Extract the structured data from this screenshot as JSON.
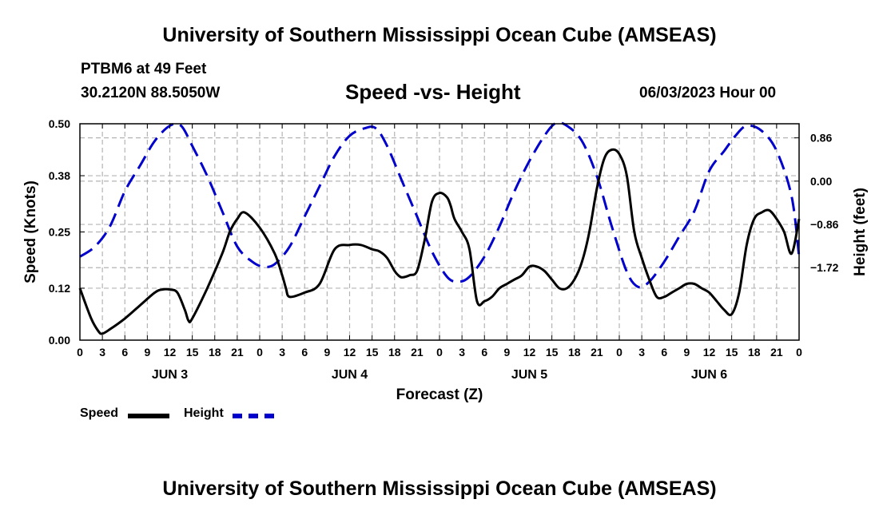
{
  "header": {
    "title": "University of Southern Mississippi Ocean Cube (AMSEAS)",
    "station": "PTBM6 at 49 Feet",
    "coordinates": "30.2120N  88.5050W",
    "forecast_time": "06/03/2023 Hour 00"
  },
  "footer": {
    "title": "University of Southern Mississippi Ocean Cube (AMSEAS)"
  },
  "colors": {
    "speed": "#000000",
    "height": "#0000cc",
    "grid": "#b4b4b4"
  },
  "chart_data": {
    "type": "line",
    "title": "Speed -vs- Height",
    "xlabel": "Forecast (Z)",
    "ylabel": "Speed (Knots)",
    "y2label": "Height (feet)",
    "xlim": [
      0,
      96
    ],
    "ylim": [
      0,
      0.5
    ],
    "y2lim": [
      -3.16,
      1.14
    ],
    "x_tick_values": [
      0,
      3,
      6,
      9,
      12,
      15,
      18,
      21,
      24,
      27,
      30,
      33,
      36,
      39,
      42,
      45,
      48,
      51,
      54,
      57,
      60,
      63,
      66,
      69,
      72,
      75,
      78,
      81,
      84,
      87,
      90,
      93,
      96
    ],
    "x_tick_labels": [
      "0",
      "3",
      "6",
      "9",
      "12",
      "15",
      "18",
      "21",
      "0",
      "3",
      "6",
      "9",
      "12",
      "15",
      "18",
      "21",
      "0",
      "3",
      "6",
      "9",
      "12",
      "15",
      "18",
      "21",
      "0",
      "3",
      "6",
      "9",
      "12",
      "15",
      "18",
      "21",
      "0"
    ],
    "day_labels": [
      {
        "label": "JUN 3",
        "at_hour": 12
      },
      {
        "label": "JUN 4",
        "at_hour": 36
      },
      {
        "label": "JUN 5",
        "at_hour": 60
      },
      {
        "label": "JUN 6",
        "at_hour": 84
      }
    ],
    "y_ticks": [
      0.0,
      0.12,
      0.25,
      0.38,
      0.5
    ],
    "y_tick_labels": [
      "0.00",
      "0.12",
      "0.25",
      "0.38",
      "0.50"
    ],
    "y2_ticks": [
      0.86,
      0.0,
      -0.86,
      -1.72
    ],
    "y2_tick_labels": [
      "0.86",
      "0.00",
      "−0.86",
      "−1.72"
    ],
    "grid": true,
    "legend": {
      "position": "bottom-left",
      "entries": [
        {
          "name": "Speed",
          "style": "solid"
        },
        {
          "name": "Height",
          "style": "dashed"
        }
      ]
    },
    "series": [
      {
        "name": "Speed",
        "axis": "left",
        "style": "solid",
        "x": [
          0,
          1.5,
          2.5,
          3,
          4,
          6,
          8,
          10,
          11,
          12,
          13,
          14,
          14.5,
          15,
          17,
          19,
          20,
          21,
          22,
          24,
          26,
          27,
          27.5,
          28,
          30,
          32,
          34,
          36,
          37.5,
          39,
          40,
          41,
          42,
          42.5,
          43,
          44,
          45,
          46,
          47,
          48,
          49,
          49.5,
          50,
          51,
          52,
          53,
          54,
          55,
          56,
          57,
          58,
          59,
          60,
          61,
          62,
          63,
          64,
          65,
          66,
          67,
          68,
          69,
          70,
          71,
          72,
          73,
          74,
          75,
          76,
          77,
          78,
          79,
          80,
          81,
          82,
          83,
          84,
          85,
          86,
          87,
          88,
          89,
          90,
          91,
          92,
          93,
          94,
          95,
          96
        ],
        "y": [
          0.12,
          0.05,
          0.02,
          0.015,
          0.025,
          0.05,
          0.08,
          0.11,
          0.117,
          0.117,
          0.11,
          0.07,
          0.045,
          0.05,
          0.12,
          0.2,
          0.25,
          0.28,
          0.295,
          0.26,
          0.2,
          0.15,
          0.12,
          0.1,
          0.11,
          0.13,
          0.21,
          0.22,
          0.22,
          0.21,
          0.205,
          0.19,
          0.16,
          0.15,
          0.145,
          0.15,
          0.16,
          0.23,
          0.32,
          0.34,
          0.33,
          0.31,
          0.28,
          0.25,
          0.21,
          0.09,
          0.09,
          0.1,
          0.12,
          0.13,
          0.14,
          0.15,
          0.17,
          0.17,
          0.16,
          0.14,
          0.12,
          0.12,
          0.14,
          0.18,
          0.25,
          0.35,
          0.42,
          0.44,
          0.43,
          0.38,
          0.25,
          0.19,
          0.14,
          0.1,
          0.1,
          0.11,
          0.12,
          0.13,
          0.13,
          0.12,
          0.11,
          0.09,
          0.07,
          0.06,
          0.11,
          0.22,
          0.28,
          0.295,
          0.3,
          0.28,
          0.25,
          0.2,
          0.28
        ]
      },
      {
        "name": "Height",
        "axis": "right",
        "style": "dashed",
        "x": [
          0,
          2,
          4,
          6,
          8,
          10,
          12,
          13.5,
          15,
          17,
          19,
          21,
          23,
          24.5,
          26,
          28,
          30,
          32,
          34,
          36,
          38,
          39.5,
          41,
          43,
          45,
          47,
          49,
          50.5,
          52,
          54,
          56,
          58,
          60,
          62,
          63.5,
          65,
          67,
          69,
          71,
          73,
          74.5,
          76,
          78,
          80,
          82,
          84,
          86,
          87.5,
          89,
          91,
          93,
          95,
          96
        ],
        "y": [
          -1.5,
          -1.3,
          -0.9,
          -0.2,
          0.3,
          0.8,
          1.1,
          1.1,
          0.7,
          0.1,
          -0.6,
          -1.3,
          -1.6,
          -1.7,
          -1.65,
          -1.3,
          -0.7,
          -0.1,
          0.5,
          0.9,
          1.05,
          1.05,
          0.7,
          0.0,
          -0.7,
          -1.4,
          -1.9,
          -2.0,
          -1.9,
          -1.5,
          -0.9,
          -0.2,
          0.4,
          0.9,
          1.15,
          1.1,
          0.8,
          0.1,
          -0.9,
          -1.8,
          -2.1,
          -2.0,
          -1.6,
          -1.1,
          -0.6,
          0.2,
          0.6,
          0.9,
          1.1,
          1.0,
          0.6,
          -0.3,
          -1.5
        ]
      }
    ]
  }
}
